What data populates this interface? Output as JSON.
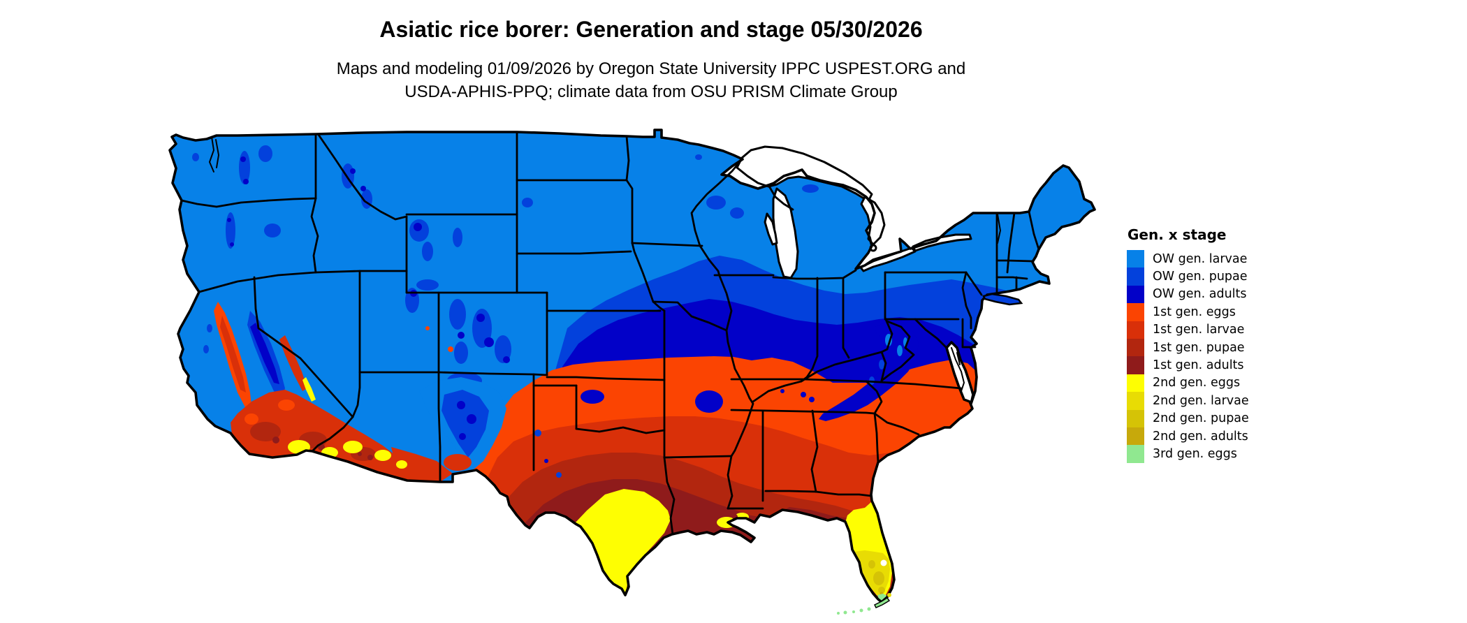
{
  "title": "Asiatic rice borer: Generation and stage 05/30/2026",
  "subtitle_line1": "Maps and modeling 01/09/2026 by Oregon State University IPPC USPEST.ORG and",
  "subtitle_line2": "USDA-APHIS-PPQ; climate data from OSU PRISM Climate Group",
  "legend": {
    "title": "Gen. x stage",
    "entries": [
      {
        "label": "OW gen. larvae",
        "color": "#0781E8"
      },
      {
        "label": "OW gen. pupae",
        "color": "#0341DC"
      },
      {
        "label": "OW gen. adults",
        "color": "#0201C8"
      },
      {
        "label": "1st gen. eggs",
        "color": "#FB4402"
      },
      {
        "label": "1st gen. larvae",
        "color": "#D93009"
      },
      {
        "label": "1st gen. pupae",
        "color": "#B2260F"
      },
      {
        "label": "1st gen. adults",
        "color": "#8F1B1B"
      },
      {
        "label": "2nd gen. eggs",
        "color": "#FEFE02"
      },
      {
        "label": "2nd gen. larvae",
        "color": "#E8DC04"
      },
      {
        "label": "2nd gen. pupae",
        "color": "#D5C306"
      },
      {
        "label": "2nd gen. adults",
        "color": "#C7A90B"
      },
      {
        "label": "3rd gen. eggs",
        "color": "#90E890"
      }
    ]
  },
  "map": {
    "description": "Contiguous United States map colored by Asiatic rice borer generation and life stage on 05/30/2026",
    "zones": [
      {
        "region": "Northern tier: Pacific Northwest, Rockies, northern Plains, Great Lakes, Northeast",
        "stage": "OW gen. larvae"
      },
      {
        "region": "Transition band: southern Iowa, central Illinois, Indiana, Ohio, Pennsylvania, southern New York",
        "stage": "OW gen. pupae"
      },
      {
        "region": "Lower Midwest and Appalachians: Missouri, Kentucky, West Virginia, western Virginia, Maryland",
        "stage": "OW gen. adults"
      },
      {
        "region": "Upper South: Oklahoma, Arkansas, Tennessee, North Carolina, eastern Virginia",
        "stage": "1st gen. eggs"
      },
      {
        "region": "Deep South: most of Texas, Louisiana, Mississippi, Alabama, Georgia, South Carolina; California Central Valley; desert Southwest",
        "stage": "1st gen. larvae"
      },
      {
        "region": "Inner Gulf Coast fringe and Mojave/Sonoran desert patches",
        "stage": "1st gen. pupae"
      },
      {
        "region": "Coastal Texas-Louisiana strip and top of Florida peninsula",
        "stage": "1st gen. adults"
      },
      {
        "region": "South Texas, Imperial Valley and southern Arizona valleys, central Florida",
        "stage": "2nd gen. eggs"
      },
      {
        "region": "Lower Rio Grande Valley and southern Florida",
        "stage": "2nd gen. larvae"
      },
      {
        "region": "Scattered pockets in far-south Florida",
        "stage": "2nd gen. pupae"
      },
      {
        "region": "Trace hottest pockets",
        "stage": "2nd gen. adults"
      },
      {
        "region": "Southern tip of Florida and the Keys",
        "stage": "3rd gen. eggs"
      }
    ]
  }
}
